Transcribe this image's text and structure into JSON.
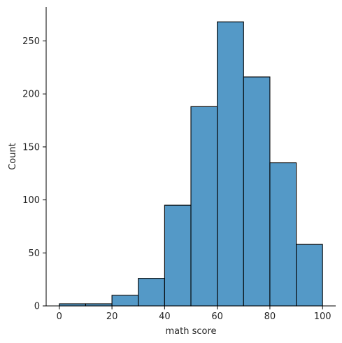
{
  "chart_data": {
    "type": "bar",
    "title": "",
    "xlabel": "math score",
    "ylabel": "Count",
    "bins": [
      {
        "start": 0,
        "end": 10,
        "count": 2
      },
      {
        "start": 10,
        "end": 20,
        "count": 2
      },
      {
        "start": 20,
        "end": 30,
        "count": 10
      },
      {
        "start": 30,
        "end": 40,
        "count": 26
      },
      {
        "start": 40,
        "end": 50,
        "count": 95
      },
      {
        "start": 50,
        "end": 60,
        "count": 188
      },
      {
        "start": 60,
        "end": 70,
        "count": 268
      },
      {
        "start": 70,
        "end": 80,
        "count": 216
      },
      {
        "start": 80,
        "end": 90,
        "count": 135
      },
      {
        "start": 90,
        "end": 100,
        "count": 58
      }
    ],
    "xlim": [
      -5,
      105
    ],
    "ylim": [
      0,
      282
    ],
    "xticks": [
      0,
      20,
      40,
      60,
      80,
      100
    ],
    "yticks": [
      0,
      50,
      100,
      150,
      200,
      250
    ],
    "grid": false,
    "colors": {
      "bar_fill": "#5499c7",
      "bar_edge": "#000000"
    }
  }
}
